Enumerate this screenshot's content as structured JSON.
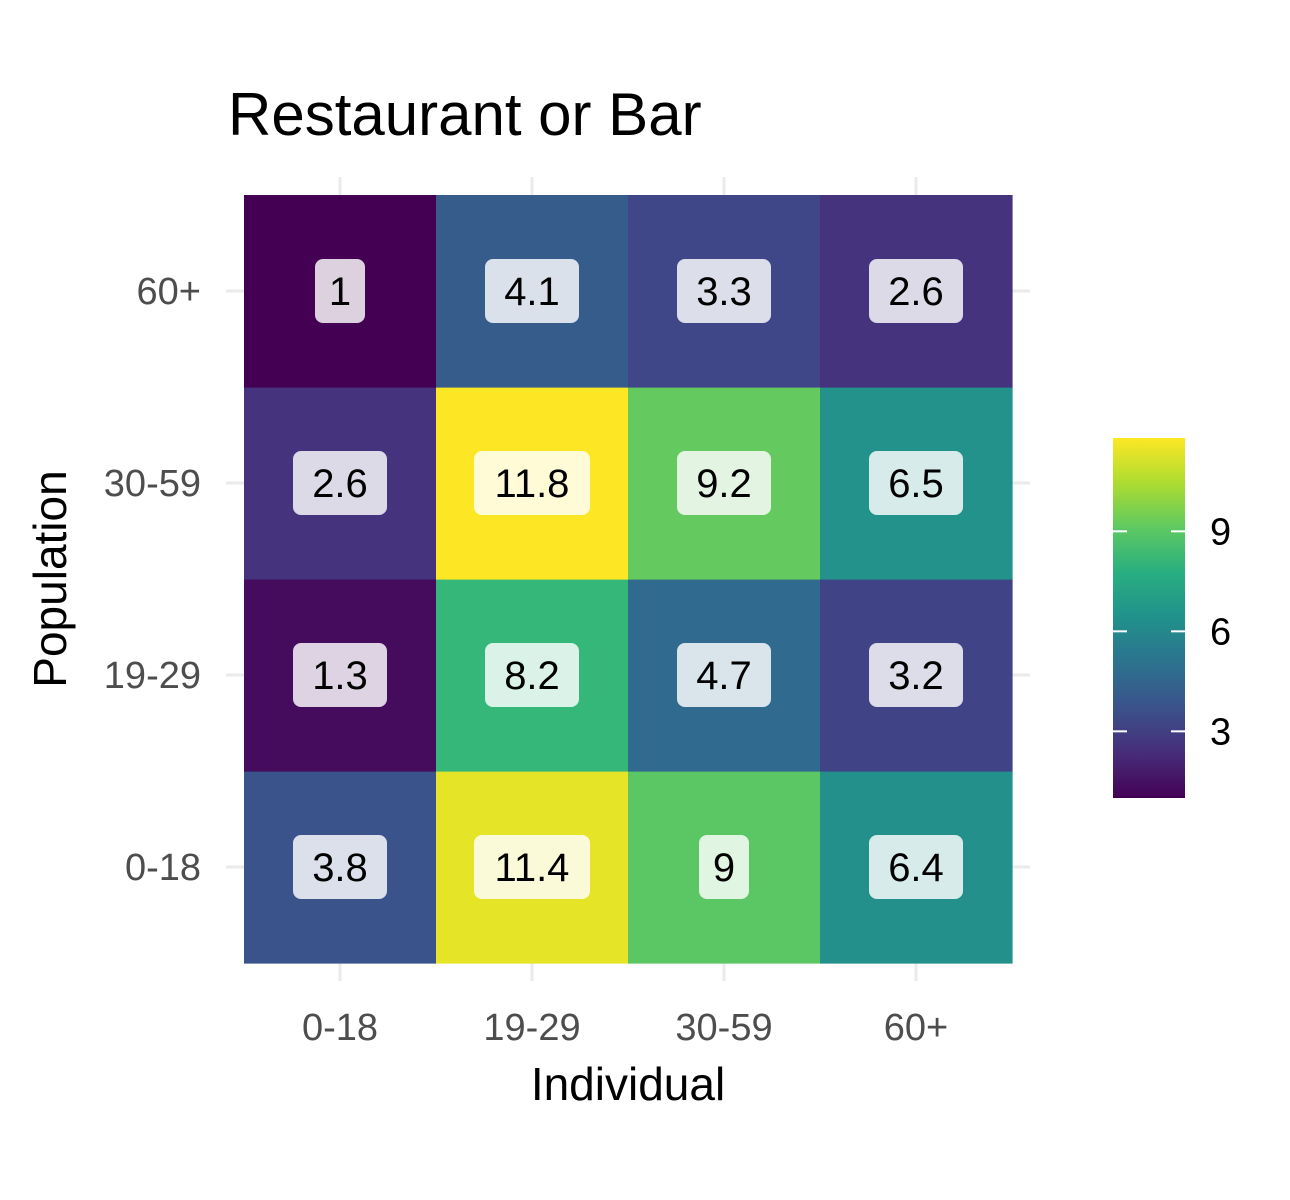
{
  "chart_data": {
    "type": "heatmap",
    "title": "Restaurant or Bar",
    "xlabel": "Individual",
    "ylabel": "Population",
    "x_categories": [
      "0-18",
      "19-29",
      "30-59",
      "60+"
    ],
    "y_categories": [
      "0-18",
      "19-29",
      "30-59",
      "60+"
    ],
    "values": [
      [
        3.8,
        11.4,
        9,
        6.4
      ],
      [
        1.3,
        8.2,
        4.7,
        3.2
      ],
      [
        2.6,
        11.8,
        9.2,
        6.5
      ],
      [
        1,
        4.1,
        3.3,
        2.6
      ]
    ],
    "value_labels": [
      [
        "3.8",
        "11.4",
        "9",
        "6.4"
      ],
      [
        "1.3",
        "8.2",
        "4.7",
        "3.2"
      ],
      [
        "2.6",
        "11.8",
        "9.2",
        "6.5"
      ],
      [
        "1",
        "4.1",
        "3.3",
        "2.6"
      ]
    ],
    "color_scale": "viridis",
    "color_range": [
      1,
      11.8
    ],
    "legend": {
      "placement": "right",
      "ticks": [
        3,
        6,
        9
      ],
      "tick_labels": [
        "3",
        "6",
        "9"
      ]
    },
    "grid": true
  }
}
